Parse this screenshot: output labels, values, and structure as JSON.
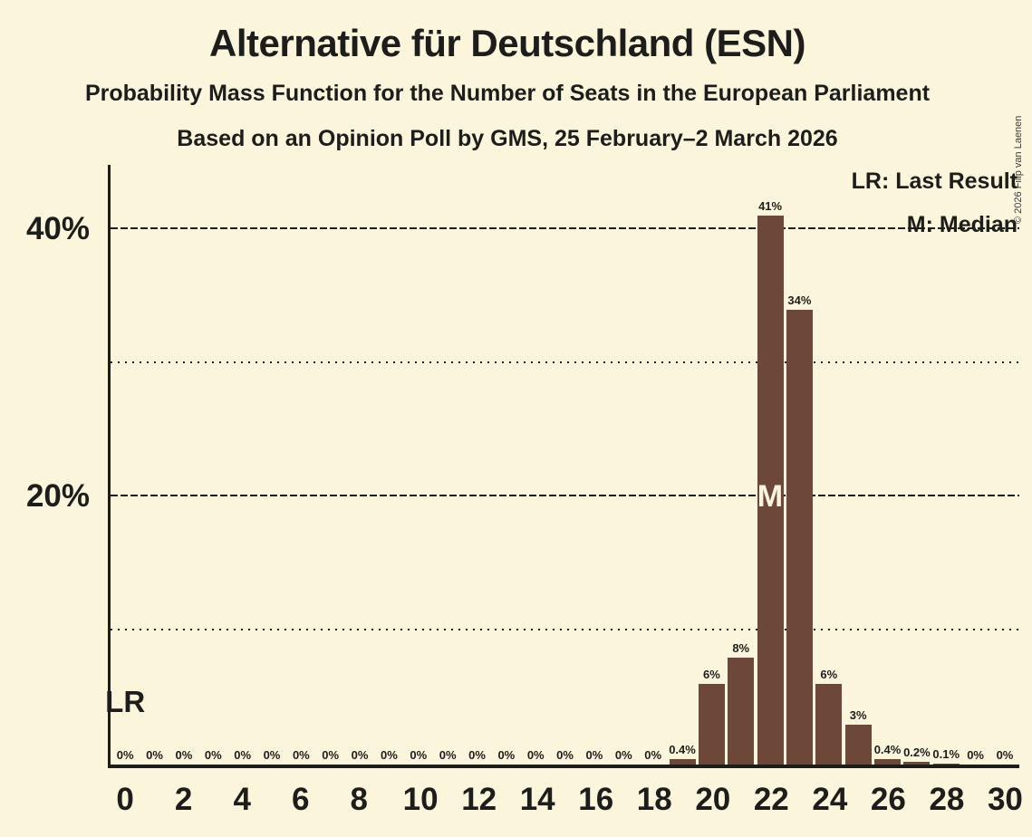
{
  "title": "Alternative für Deutschland (ESN)",
  "subtitle": "Probability Mass Function for the Number of Seats in the European Parliament",
  "poll_info": "Based on an Opinion Poll by GMS, 25 February–2 March 2026",
  "copyright": "© 2026 Filip van Laenen",
  "legend": {
    "last_result": "LR: Last Result",
    "median": "M: Median"
  },
  "colors": {
    "background": "#FBF5DC",
    "bar": "#6D4839",
    "text": "#1D1D1B"
  },
  "chart_data": {
    "type": "bar",
    "title": "Alternative für Deutschland (ESN)",
    "xlabel": "",
    "ylabel": "",
    "x": [
      0,
      1,
      2,
      3,
      4,
      5,
      6,
      7,
      8,
      9,
      10,
      11,
      12,
      13,
      14,
      15,
      16,
      17,
      18,
      19,
      20,
      21,
      22,
      23,
      24,
      25,
      26,
      27,
      28,
      29,
      30
    ],
    "values": [
      0,
      0,
      0,
      0,
      0,
      0,
      0,
      0,
      0,
      0,
      0,
      0,
      0,
      0,
      0,
      0,
      0,
      0,
      0,
      0.4,
      6,
      8,
      41,
      34,
      6,
      3,
      0.4,
      0.2,
      0.1,
      0,
      0
    ],
    "labels": [
      "0%",
      "0%",
      "0%",
      "0%",
      "0%",
      "0%",
      "0%",
      "0%",
      "0%",
      "0%",
      "0%",
      "0%",
      "0%",
      "0%",
      "0%",
      "0%",
      "0%",
      "0%",
      "0%",
      "0.4%",
      "6%",
      "8%",
      "41%",
      "34%",
      "6%",
      "3%",
      "0.4%",
      "0.2%",
      "0.1%",
      "0%",
      "0%"
    ],
    "ylim": [
      0,
      44.8
    ],
    "yticks": [
      {
        "value": 20,
        "label": "20%"
      },
      {
        "value": 40,
        "label": "40%"
      }
    ],
    "gridlines": [
      {
        "value": 10,
        "style": "dotted"
      },
      {
        "value": 20,
        "style": "dashed"
      },
      {
        "value": 30,
        "style": "dotted"
      },
      {
        "value": 40,
        "style": "dashed"
      }
    ],
    "xtick_every": 2,
    "median_seat": 22,
    "median_marker": "M",
    "last_result_seat": 0,
    "last_result_marker": "LR",
    "legend_position": "top-right",
    "grid": "horizontal-only"
  }
}
